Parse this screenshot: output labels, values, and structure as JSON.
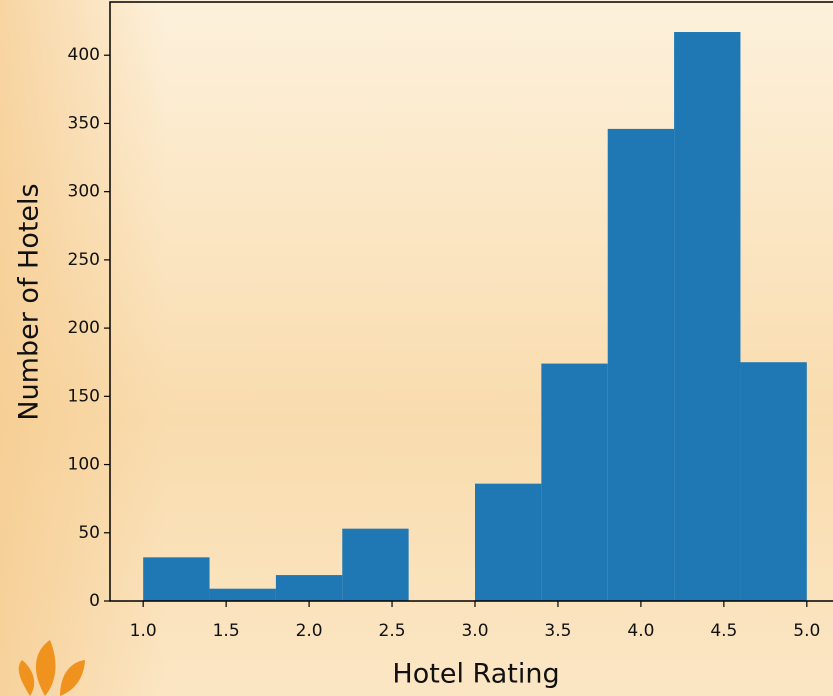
{
  "chart_data": {
    "type": "histogram",
    "x_label": "Hotel Rating",
    "y_label": "Number of Hotels",
    "bins": [
      1.0,
      1.4,
      1.8,
      2.2,
      2.6,
      3.0,
      3.4,
      3.8,
      4.2,
      4.6,
      5.0
    ],
    "values": [
      32,
      9,
      19,
      53,
      0,
      86,
      174,
      346,
      417,
      175
    ],
    "color": "#1f77b4",
    "xlim": [
      0.8,
      5.2
    ],
    "ylim": [
      0,
      439
    ],
    "xticks": [
      {
        "value": 1,
        "label": "1.0"
      },
      {
        "value": 1.5,
        "label": "1.5"
      },
      {
        "value": 2,
        "label": "2.0"
      },
      {
        "value": 2.5,
        "label": "2.5"
      },
      {
        "value": 3,
        "label": "3.0"
      },
      {
        "value": 3.5,
        "label": "3.5"
      },
      {
        "value": 4,
        "label": "4.0"
      },
      {
        "value": 4.5,
        "label": "4.5"
      },
      {
        "value": 5,
        "label": "5.0"
      }
    ],
    "yticks": [
      0,
      50,
      100,
      150,
      200,
      250,
      300,
      350,
      400
    ]
  }
}
